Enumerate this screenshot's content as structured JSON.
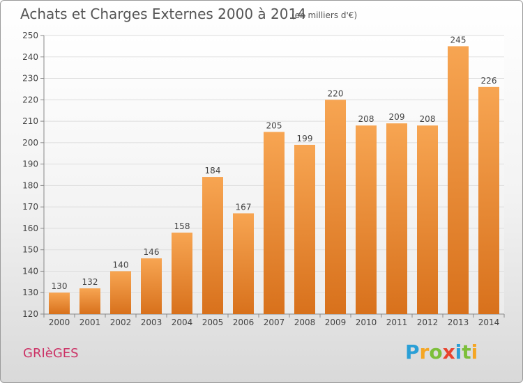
{
  "header": {
    "title": "Achats et Charges Externes 2000 à 2014",
    "unit_note": "(en milliers d'€)"
  },
  "footer": {
    "commune": "GRIèGES",
    "logo_letters": [
      {
        "ch": "P",
        "color": "#2a9fd6"
      },
      {
        "ch": "r",
        "color": "#f5a623"
      },
      {
        "ch": "o",
        "color": "#7cbf3a"
      },
      {
        "ch": "x",
        "color": "#e8432e"
      },
      {
        "ch": "i",
        "color": "#2a9fd6"
      },
      {
        "ch": "t",
        "color": "#7cbf3a"
      },
      {
        "ch": "i",
        "color": "#f5a623"
      }
    ]
  },
  "chart_data": {
    "type": "bar",
    "categories": [
      "2000",
      "2001",
      "2002",
      "2003",
      "2004",
      "2005",
      "2006",
      "2007",
      "2008",
      "2009",
      "2010",
      "2011",
      "2012",
      "2013",
      "2014"
    ],
    "values": [
      130,
      132,
      140,
      146,
      158,
      184,
      167,
      205,
      199,
      220,
      208,
      209,
      208,
      245,
      226
    ],
    "ylim": [
      120,
      250
    ],
    "yticks": [
      120,
      130,
      140,
      150,
      160,
      170,
      180,
      190,
      200,
      210,
      220,
      230,
      240,
      250
    ],
    "grid": true,
    "bar_color_top": "#f7a552",
    "bar_color_bottom": "#d8711c"
  }
}
